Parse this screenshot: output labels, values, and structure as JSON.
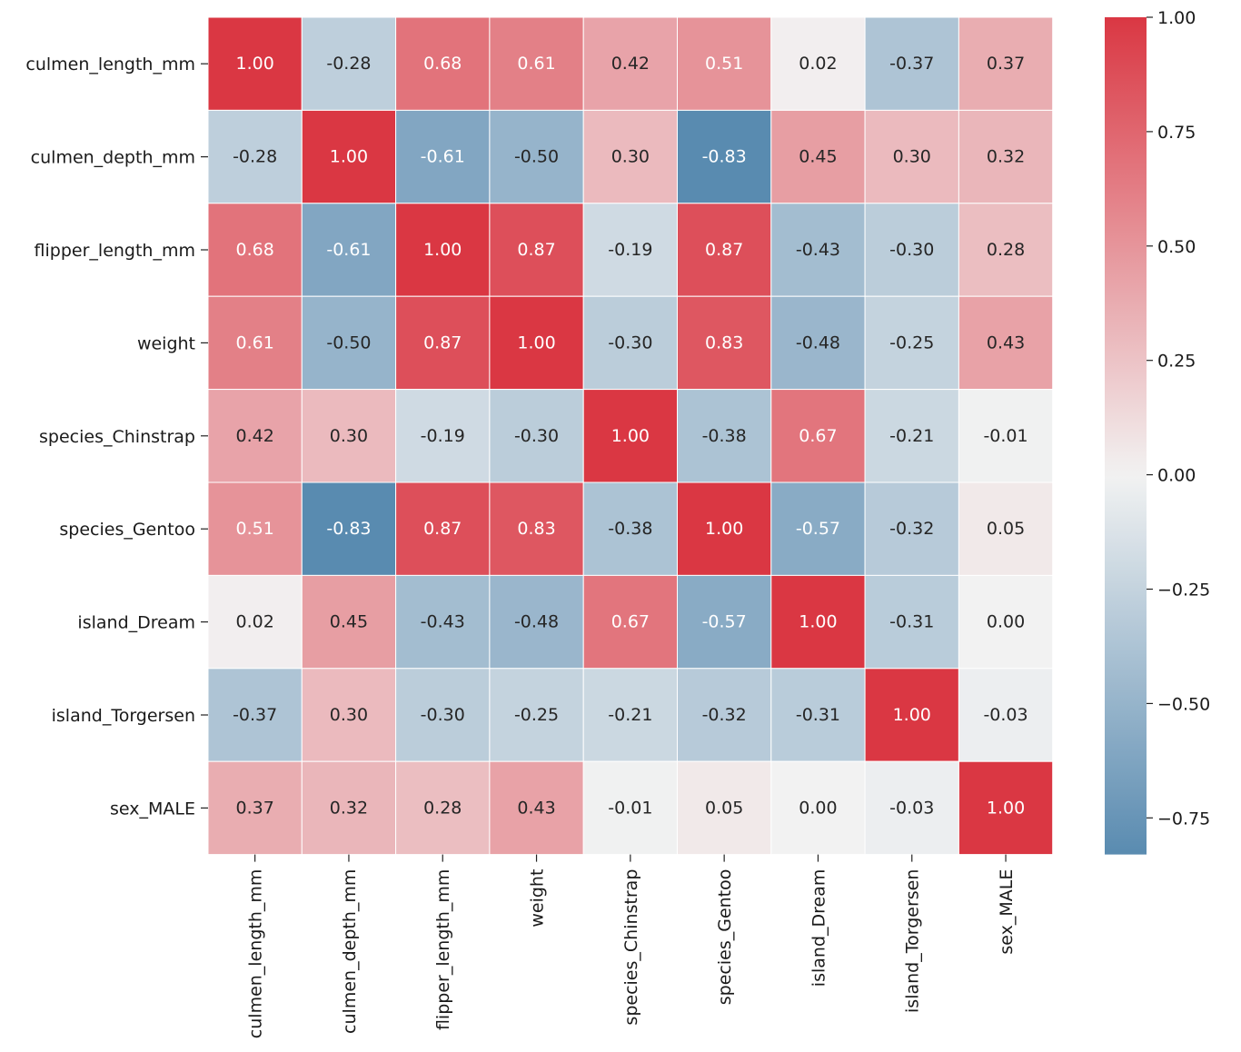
{
  "chart_data": {
    "type": "heatmap",
    "title": "",
    "xlabel": "",
    "ylabel": "",
    "rows": [
      "culmen_length_mm",
      "culmen_depth_mm",
      "flipper_length_mm",
      "weight",
      "species_Chinstrap",
      "species_Gentoo",
      "island_Dream",
      "island_Torgersen",
      "sex_MALE"
    ],
    "columns": [
      "culmen_length_mm",
      "culmen_depth_mm",
      "flipper_length_mm",
      "weight",
      "species_Chinstrap",
      "species_Gentoo",
      "island_Dream",
      "island_Torgersen",
      "sex_MALE"
    ],
    "values": [
      [
        1.0,
        -0.28,
        0.68,
        0.61,
        0.42,
        0.51,
        0.02,
        -0.37,
        0.37
      ],
      [
        -0.28,
        1.0,
        -0.61,
        -0.5,
        0.3,
        -0.83,
        0.45,
        0.3,
        0.32
      ],
      [
        0.68,
        -0.61,
        1.0,
        0.87,
        -0.19,
        0.87,
        -0.43,
        -0.3,
        0.28
      ],
      [
        0.61,
        -0.5,
        0.87,
        1.0,
        -0.3,
        0.83,
        -0.48,
        -0.25,
        0.43
      ],
      [
        0.42,
        0.3,
        -0.19,
        -0.3,
        1.0,
        -0.38,
        0.67,
        -0.21,
        -0.01
      ],
      [
        0.51,
        -0.83,
        0.87,
        0.83,
        -0.38,
        1.0,
        -0.57,
        -0.32,
        0.05
      ],
      [
        0.02,
        0.45,
        -0.43,
        -0.48,
        0.67,
        -0.57,
        1.0,
        -0.31,
        0.0
      ],
      [
        -0.37,
        0.3,
        -0.3,
        -0.25,
        -0.21,
        -0.32,
        -0.31,
        1.0,
        -0.03
      ],
      [
        0.37,
        0.32,
        0.28,
        0.43,
        -0.01,
        0.05,
        0.0,
        -0.03,
        1.0
      ]
    ],
    "value_format": "2 decimals",
    "colorbar": {
      "range": [
        -0.83,
        1.0
      ],
      "ticks": [
        1.0,
        0.75,
        0.5,
        0.25,
        0.0,
        -0.25,
        -0.5,
        -0.75
      ],
      "tick_labels": [
        "1.00",
        "0.75",
        "0.50",
        "0.25",
        "0.00",
        "−0.25",
        "−0.50",
        "−0.75"
      ],
      "colors": {
        "negative": "#3a76a3",
        "center": "#f2f2f2",
        "positive": "#da3743"
      }
    },
    "cell_border_color": "#ffffff",
    "grid": false,
    "legend": "colorbar-right"
  }
}
